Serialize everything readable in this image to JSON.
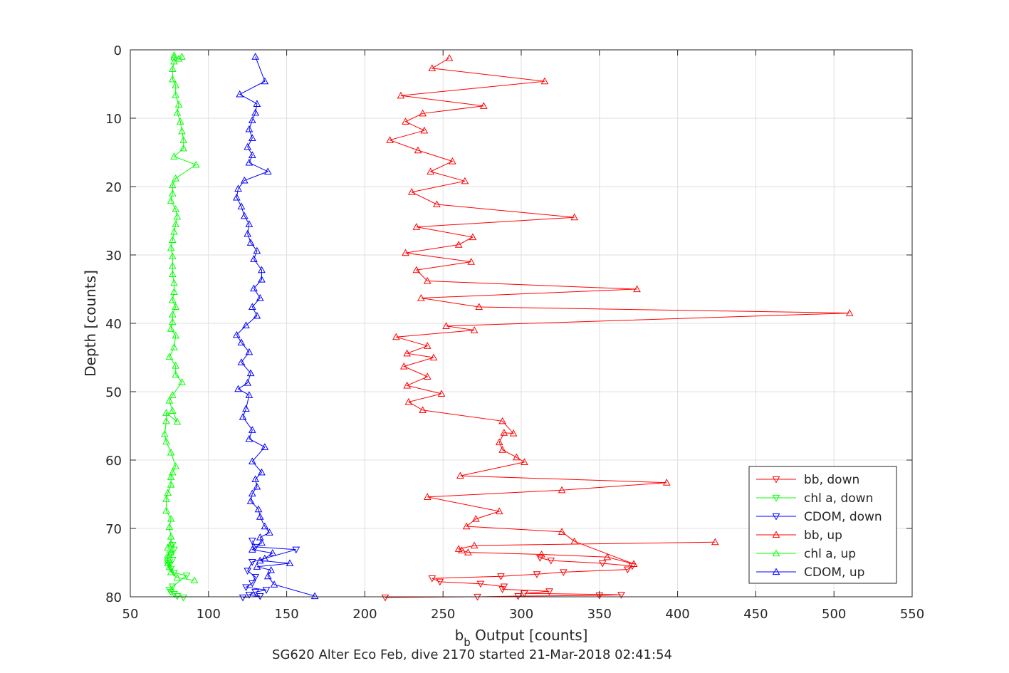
{
  "chart_data": {
    "type": "scatter",
    "title": "SG620 Alter Eco Feb, dive 2170 started 21-Mar-2018 02:41:54",
    "xlabel": {
      "main": "b",
      "sub": "b",
      "rest": " Output [counts]"
    },
    "ylabel": "Depth [counts]",
    "xlim": [
      50,
      550
    ],
    "ylim": [
      0,
      80
    ],
    "y_reversed": true,
    "grid": true,
    "legend_position": "bottom-right",
    "x_ticks": [
      "50",
      "100",
      "150",
      "200",
      "250",
      "300",
      "350",
      "400",
      "450",
      "500",
      "550"
    ],
    "y_ticks": [
      "0",
      "10",
      "20",
      "30",
      "40",
      "50",
      "60",
      "70",
      "80"
    ],
    "colors": {
      "red": "#ff0000",
      "green": "#00ff00",
      "blue": "#0000ff"
    },
    "series": [
      {
        "name": "bb, down",
        "color": "#ff0000",
        "marker": "triangle-down",
        "x": [
          213,
          272,
          298,
          350,
          364,
          302,
          318,
          288,
          289,
          274,
          248,
          243,
          287,
          310,
          327,
          368,
          371,
          352,
          319,
          312
        ],
        "y": [
          80.1,
          80.0,
          79.9,
          79.8,
          79.7,
          79.5,
          79.2,
          78.9,
          78.5,
          78.1,
          77.8,
          77.3,
          77.0,
          76.7,
          76.4,
          76.0,
          75.5,
          75.1,
          74.7,
          74.3
        ]
      },
      {
        "name": "chl a, down",
        "color": "#00ff00",
        "marker": "triangle-down",
        "x": [
          84,
          80,
          78,
          76,
          75,
          77,
          86,
          78,
          76,
          75,
          77,
          76,
          78,
          77
        ],
        "y": [
          80.1,
          79.9,
          79.6,
          79.3,
          79.0,
          78.5,
          76.9,
          76.5,
          75.9,
          75.3,
          74.6,
          73.8,
          73.1,
          72.4
        ]
      },
      {
        "name": "CDOM, down",
        "color": "#0000ff",
        "marker": "triangle-down",
        "x": [
          122,
          133,
          126,
          130,
          137,
          124,
          128,
          130,
          125,
          128,
          156,
          130,
          128
        ],
        "y": [
          80.1,
          79.9,
          79.7,
          79.3,
          79.0,
          78.6,
          78.0,
          77.1,
          76.2,
          74.9,
          73.1,
          72.7,
          71.8
        ]
      },
      {
        "name": "bb, up",
        "color": "#ff0000",
        "marker": "triangle-up",
        "x": [
          424,
          270,
          260,
          262,
          266,
          313,
          355,
          372,
          334,
          326,
          265,
          271,
          286,
          240,
          326,
          393,
          261,
          302,
          297,
          288,
          286,
          289,
          295,
          288,
          237,
          228,
          249,
          227,
          240,
          225,
          244,
          227,
          240,
          220,
          270,
          252,
          510,
          273,
          236,
          374,
          240,
          233,
          268,
          226,
          260,
          269,
          233,
          334,
          246,
          230,
          264,
          242,
          256,
          234,
          216,
          238,
          226,
          237,
          276,
          223,
          315,
          243,
          254
        ],
        "y": [
          72.0,
          72.5,
          73.0,
          73.2,
          73.5,
          73.8,
          74.2,
          75.2,
          71.9,
          70.5,
          69.7,
          68.6,
          67.5,
          65.4,
          64.4,
          63.3,
          62.3,
          60.3,
          59.6,
          58.5,
          57.4,
          56.0,
          56.1,
          54.3,
          52.7,
          51.5,
          50.3,
          49.1,
          47.8,
          46.3,
          45.0,
          44.4,
          43.3,
          42.0,
          41.0,
          40.4,
          38.5,
          37.6,
          36.3,
          35.0,
          33.8,
          32.2,
          31.0,
          29.7,
          28.5,
          27.4,
          25.9,
          24.5,
          22.6,
          20.8,
          19.2,
          17.8,
          16.3,
          14.7,
          13.2,
          11.8,
          10.5,
          9.3,
          8.2,
          6.7,
          4.6,
          2.7,
          1.2
        ]
      },
      {
        "name": "chl a, up",
        "color": "#00ff00",
        "marker": "triangle-up",
        "x": [
          91,
          80,
          76,
          75,
          74,
          74,
          74,
          74,
          76,
          74,
          76,
          76,
          75,
          76,
          73,
          73,
          74,
          76,
          76,
          77,
          79,
          76,
          73,
          72,
          73,
          73,
          80,
          77,
          75,
          77,
          83,
          79,
          79,
          75,
          78,
          79,
          76,
          77,
          77,
          79,
          77,
          78,
          78,
          77,
          77,
          77,
          76,
          77,
          78,
          79,
          80,
          79,
          76,
          77,
          77,
          79,
          92,
          78,
          84,
          84,
          83,
          82,
          80,
          81,
          79,
          79,
          77,
          77,
          78,
          78,
          78,
          81,
          83
        ],
        "y": [
          77.6,
          77.2,
          76.4,
          75.6,
          75.1,
          74.7,
          74.3,
          73.9,
          73.5,
          72.8,
          72.2,
          71.2,
          69.8,
          68.6,
          67.4,
          65.7,
          64.8,
          63.6,
          62.5,
          61.8,
          60.9,
          58.9,
          57.3,
          56.2,
          54.3,
          53.1,
          54.4,
          52.8,
          51.3,
          50.5,
          48.6,
          47.5,
          46.2,
          44.9,
          43.5,
          41.8,
          40.8,
          39.8,
          38.7,
          37.6,
          36.6,
          35.4,
          34.1,
          32.8,
          31.6,
          30.2,
          29.0,
          27.8,
          26.6,
          25.5,
          24.4,
          23.3,
          22.1,
          21.0,
          19.8,
          18.8,
          16.8,
          15.6,
          14.4,
          13.2,
          11.9,
          10.5,
          9.2,
          8.0,
          6.6,
          5.2,
          4.3,
          2.8,
          1.7,
          0.8,
          1.1,
          1.3,
          1.0
        ],
        "_note": "Digitized: many overlapping markers near x=75-80"
      },
      {
        "name": "CDOM, up",
        "color": "#0000ff",
        "marker": "triangle-up",
        "x": [
          168,
          142,
          138,
          140,
          131,
          152,
          133,
          136,
          141,
          128,
          134,
          133,
          139,
          136,
          133,
          132,
          127,
          128,
          131,
          130,
          134,
          128,
          136,
          126,
          128,
          122,
          124,
          126,
          119,
          125,
          127,
          121,
          126,
          121,
          118,
          124,
          131,
          128,
          133,
          129,
          134,
          134,
          129,
          131,
          127,
          125,
          126,
          123,
          121,
          118,
          119,
          123,
          138,
          126,
          128,
          125,
          128,
          126,
          128,
          130,
          131,
          120,
          136,
          130
        ],
        "y": [
          79.9,
          78.2,
          77.0,
          76.1,
          75.6,
          75.1,
          74.7,
          74.4,
          73.6,
          73.1,
          72.1,
          71.3,
          70.6,
          69.7,
          68.3,
          67.2,
          66.0,
          64.9,
          63.9,
          62.8,
          61.8,
          60.2,
          58.1,
          56.9,
          55.6,
          53.7,
          52.5,
          50.5,
          49.6,
          48.7,
          47.3,
          45.7,
          44.2,
          42.8,
          41.7,
          40.3,
          38.9,
          37.6,
          36.3,
          34.9,
          33.6,
          32.2,
          30.6,
          29.4,
          28.2,
          26.9,
          25.5,
          24.3,
          22.9,
          21.6,
          20.3,
          19.1,
          17.8,
          16.5,
          15.4,
          14.2,
          12.9,
          11.6,
          10.3,
          9.2,
          7.9,
          6.5,
          4.6,
          1.0
        ]
      }
    ]
  }
}
